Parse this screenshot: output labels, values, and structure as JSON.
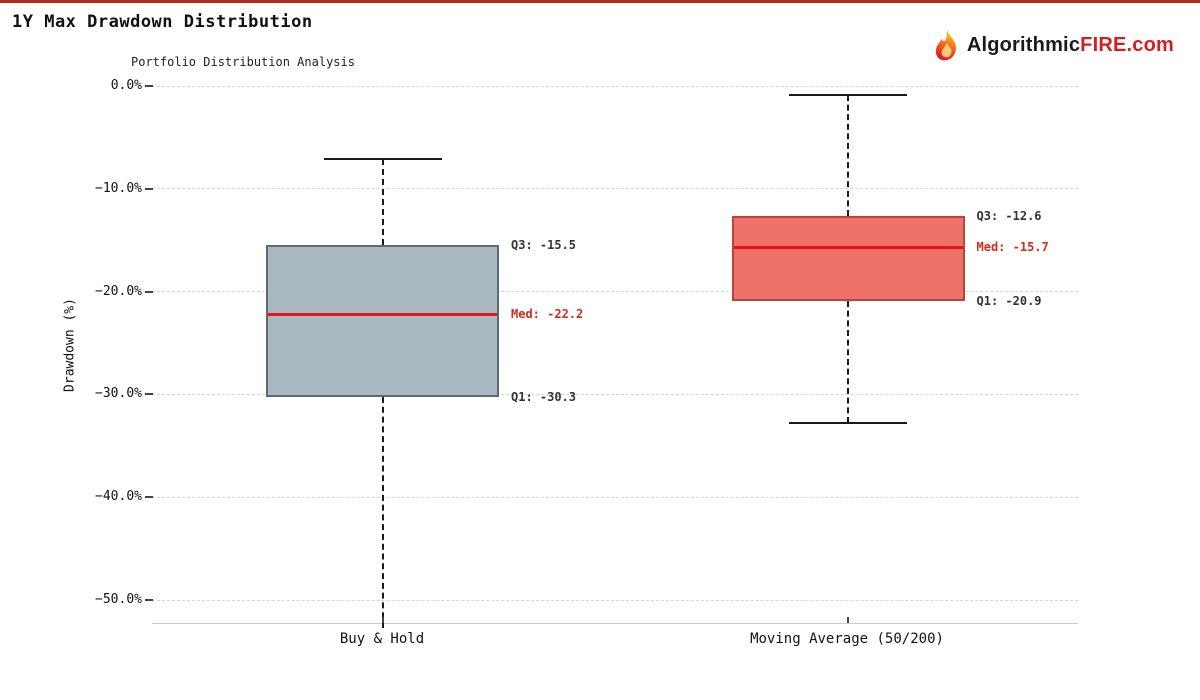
{
  "page": {
    "title": "1Y Max Drawdown Distribution",
    "top_bar_color": "#b52a1e",
    "logo": {
      "prefix": "Algorithmic",
      "fire": "FIRE",
      "tld": ".com",
      "prefix_color": "#1a1a1a",
      "accent_color": "#d21f1f"
    }
  },
  "chart_data": {
    "type": "boxplot",
    "title": "Portfolio Distribution Analysis",
    "xlabel": "",
    "ylabel": "Drawdown (%)",
    "ylim": [
      -52.2,
      0.8
    ],
    "grid": "horizontal-dashed",
    "median_color": "#e31515",
    "annotation_color": "#333333",
    "y_ticks": [
      {
        "label": "0.0%",
        "value": 0
      },
      {
        "label": "−10.0%",
        "value": -10
      },
      {
        "label": "−20.0%",
        "value": -20
      },
      {
        "label": "−30.0%",
        "value": -30
      },
      {
        "label": "−40.0%",
        "value": -40
      },
      {
        "label": "−50.0%",
        "value": -50
      }
    ],
    "series": [
      {
        "name": "Buy & Hold",
        "q3": -15.5,
        "median": -22.2,
        "q1": -30.3,
        "whisker_high": -7.1,
        "whisker_low": null,
        "whisker_low_note": "extends below visible axis range",
        "box_fill": "#a9b8c1",
        "box_border": "#5f6a70",
        "labels": {
          "q3": "Q3: -15.5",
          "med": "Med: -22.2",
          "q1": "Q1: -30.3"
        }
      },
      {
        "name": "Moving Average (50/200)",
        "q3": -12.6,
        "median": -15.7,
        "q1": -20.9,
        "whisker_high": -0.9,
        "whisker_low": -32.8,
        "box_fill": "#ee716a",
        "box_border": "#b4473c",
        "labels": {
          "q3": "Q3: -12.6",
          "med": "Med: -15.7",
          "q1": "Q1: -20.9"
        }
      }
    ]
  }
}
